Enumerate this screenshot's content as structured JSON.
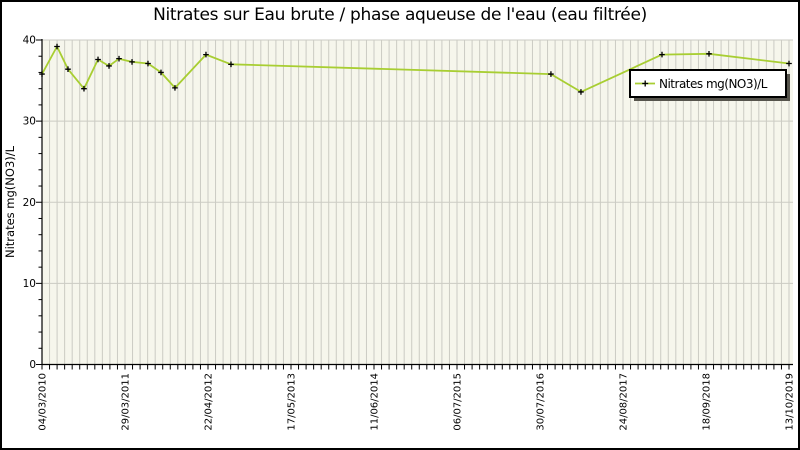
{
  "figure": {
    "background": "#ffffff",
    "border_color": "#000000"
  },
  "style": {
    "plot_bg": "#f6f6ec",
    "grid_color": "#cbcbc3",
    "axis_color": "#000000",
    "line_color": "#a8ce32",
    "marker_color": "#000000",
    "legend_bg": "#ffffff",
    "legend_border": "#000000",
    "legend_shadow": "#56544c"
  },
  "chart_data": {
    "type": "line",
    "title": "Nitrates sur Eau brute / phase aqueuse de l'eau (eau filtrée)",
    "xlabel": "",
    "ylabel": "Nitrates mg(NO3)/L",
    "ylim": [
      0,
      40
    ],
    "y_ticks": [
      40,
      30,
      20,
      10,
      0
    ],
    "x_tick_labels": [
      "04/03/2010",
      "29/03/2011",
      "22/04/2012",
      "17/05/2013",
      "11/06/2014",
      "06/07/2015",
      "30/07/2016",
      "24/08/2017",
      "18/09/2018",
      "13/10/2019"
    ],
    "grid": true,
    "legend": {
      "position": "top-right",
      "entries": [
        "Nitrates mg(NO3)/L"
      ]
    },
    "series": [
      {
        "name": "Nitrates mg(NO3)/L",
        "color": "#a8ce32",
        "marker": "plus",
        "points": [
          {
            "x_frac": 0.0,
            "approx_date": "04/03/2010",
            "y": 35.8
          },
          {
            "x_frac": 0.0201,
            "approx_date": "16/05/2010",
            "y": 39.2
          },
          {
            "x_frac": 0.0348,
            "approx_date": "07/07/2010",
            "y": 36.4
          },
          {
            "x_frac": 0.0562,
            "approx_date": "20/09/2010",
            "y": 34.0
          },
          {
            "x_frac": 0.075,
            "approx_date": "25/11/2010",
            "y": 37.6
          },
          {
            "x_frac": 0.0897,
            "approx_date": "15/01/2011",
            "y": 36.8
          },
          {
            "x_frac": 0.1031,
            "approx_date": "03/03/2011",
            "y": 37.7
          },
          {
            "x_frac": 0.1205,
            "approx_date": "03/05/2011",
            "y": 37.3
          },
          {
            "x_frac": 0.1419,
            "approx_date": "17/07/2011",
            "y": 37.1
          },
          {
            "x_frac": 0.1593,
            "approx_date": "17/09/2011",
            "y": 36.0
          },
          {
            "x_frac": 0.178,
            "approx_date": "21/11/2011",
            "y": 34.1
          },
          {
            "x_frac": 0.2195,
            "approx_date": "15/04/2012",
            "y": 38.2
          },
          {
            "x_frac": 0.253,
            "approx_date": "11/08/2012",
            "y": 37.0
          },
          {
            "x_frac": 0.6813,
            "approx_date": "23/09/2016",
            "y": 35.8
          },
          {
            "x_frac": 0.7215,
            "approx_date": "11/02/2017",
            "y": 33.6
          },
          {
            "x_frac": 0.83,
            "approx_date": "27/02/2018",
            "y": 38.2
          },
          {
            "x_frac": 0.8929,
            "approx_date": "06/10/2018",
            "y": 38.3
          },
          {
            "x_frac": 1.0,
            "approx_date": "13/10/2019",
            "y": 37.1
          }
        ]
      }
    ]
  }
}
